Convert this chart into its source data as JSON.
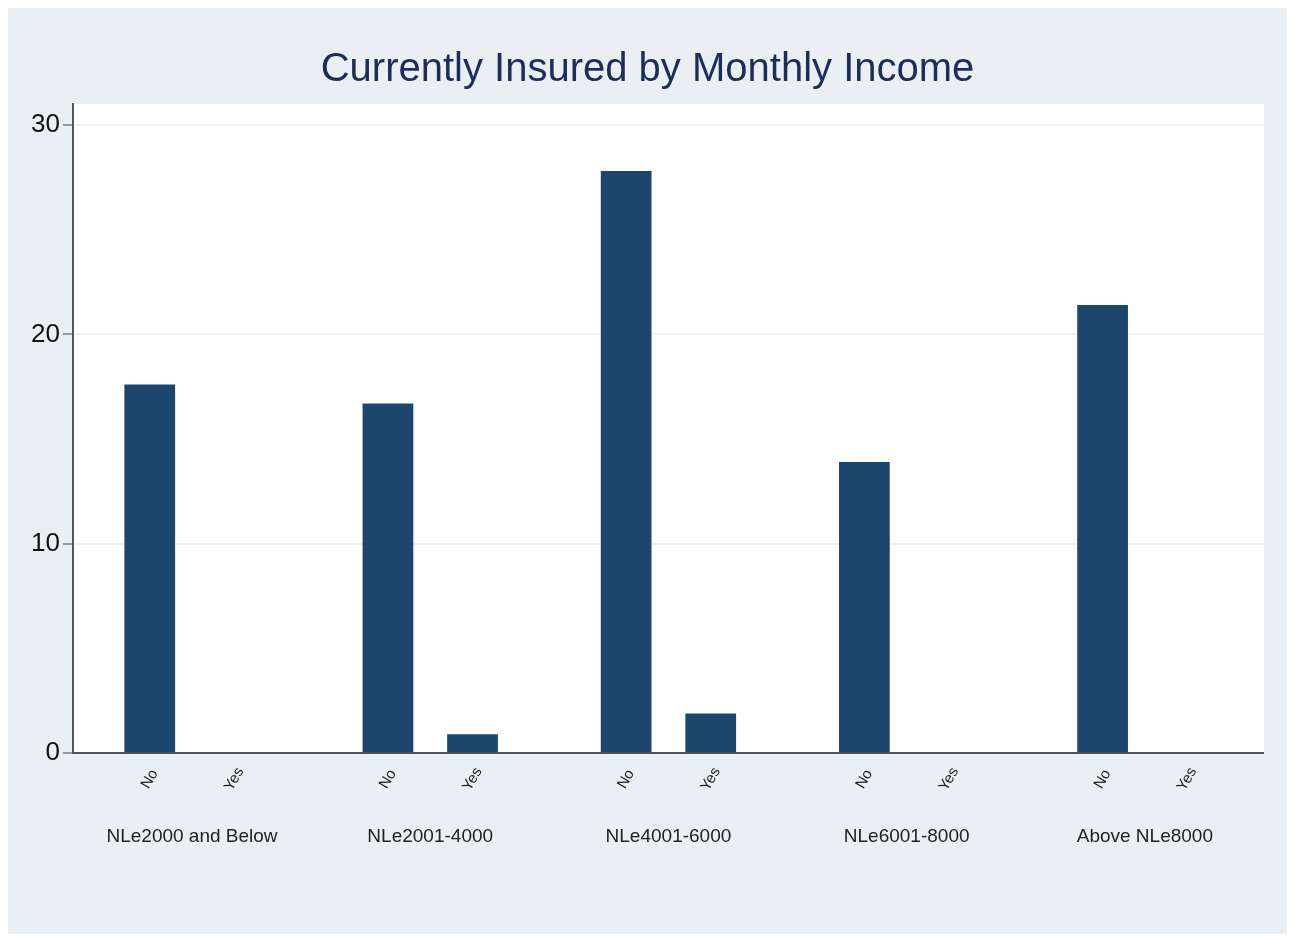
{
  "chart_data": {
    "type": "bar",
    "title": "Currently Insured by Monthly Income",
    "categories": [
      "NLe2000 and Below",
      "NLe2001-4000",
      "NLe4001-6000",
      "NLe6001-8000",
      "Above NLe8000"
    ],
    "series": [
      {
        "name": "No",
        "color": "#1c466e",
        "values": [
          17.6,
          16.7,
          27.8,
          13.9,
          21.4
        ]
      },
      {
        "name": "Yes",
        "color": "#1c466e",
        "values": [
          0,
          0.9,
          1.9,
          0,
          0
        ]
      }
    ],
    "ylim": [
      0,
      31
    ],
    "yticks": [
      0,
      10,
      20,
      30
    ],
    "grid": "y",
    "legend": false
  }
}
